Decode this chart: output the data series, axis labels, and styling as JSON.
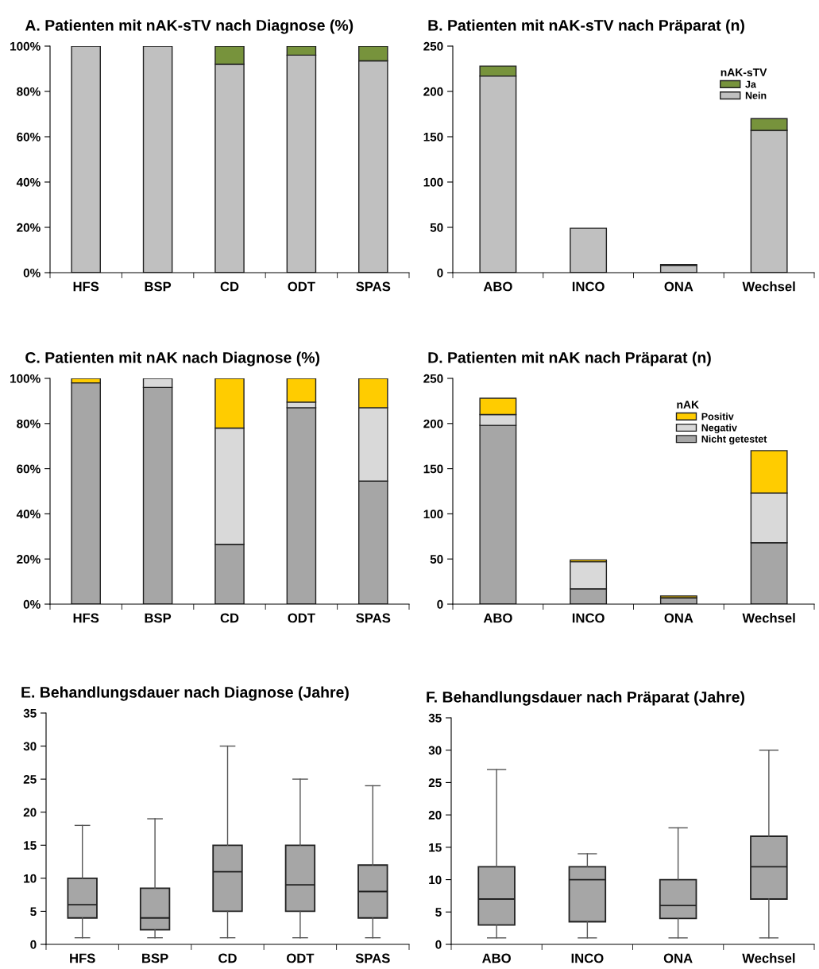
{
  "chart_data": [
    {
      "type": "bar",
      "title": "A. Patienten mit nAK-sTV nach Diagnose (%)",
      "categories": [
        "HFS",
        "BSP",
        "CD",
        "ODT",
        "SPAS"
      ],
      "stacked": true,
      "ylim": [
        0,
        100
      ],
      "yticks": [
        {
          "value": 0,
          "label": "0%"
        },
        {
          "value": 20,
          "label": "20%"
        },
        {
          "value": 40,
          "label": "40%"
        },
        {
          "value": 60,
          "label": "60%"
        },
        {
          "value": 80,
          "label": "80%"
        },
        {
          "value": 100,
          "label": "100%"
        }
      ],
      "grid": false,
      "legend": false,
      "series": [
        {
          "color": "#c0c0c0",
          "values": [
            100,
            100,
            92,
            96,
            93.5
          ]
        },
        {
          "color": "#77933c",
          "values": [
            0,
            0,
            8,
            4,
            6.5
          ]
        }
      ]
    },
    {
      "type": "bar",
      "title": "B. Patienten mit nAK-sTV nach Präparat (n)",
      "categories": [
        "ABO",
        "INCO",
        "ONA",
        "Wechsel"
      ],
      "stacked": true,
      "ylim": [
        0,
        250
      ],
      "yticks": [
        0,
        50,
        100,
        150,
        200,
        250
      ],
      "grid": false,
      "legend": "top right",
      "legend_title": "nAK-sTV",
      "series": [
        {
          "name": "Nein",
          "color": "#c0c0c0",
          "values": [
            217,
            49,
            8,
            157
          ]
        },
        {
          "name": "Ja",
          "color": "#77933c",
          "values": [
            11,
            0,
            1,
            13
          ]
        }
      ]
    },
    {
      "type": "bar",
      "title": "C. Patienten mit nAK nach Diagnose (%)",
      "categories": [
        "HFS",
        "BSP",
        "CD",
        "ODT",
        "SPAS"
      ],
      "stacked": true,
      "ylim": [
        0,
        100
      ],
      "yticks": [
        {
          "value": 0,
          "label": "0%"
        },
        {
          "value": 20,
          "label": "20%"
        },
        {
          "value": 40,
          "label": "40%"
        },
        {
          "value": 60,
          "label": "60%"
        },
        {
          "value": 80,
          "label": "80%"
        },
        {
          "value": 100,
          "label": "100%"
        }
      ],
      "grid": false,
      "legend": false,
      "series": [
        {
          "color": "#a6a6a6",
          "values": [
            98,
            96,
            26.5,
            87,
            54.5
          ]
        },
        {
          "color": "#d9d9d9",
          "values": [
            0,
            4,
            51.5,
            2.5,
            32.5
          ]
        },
        {
          "color": "#ffcc00",
          "values": [
            2,
            0,
            22,
            10.5,
            13
          ]
        }
      ]
    },
    {
      "type": "bar",
      "title": "D. Patienten mit nAK nach Präparat (n)",
      "categories": [
        "ABO",
        "INCO",
        "ONA",
        "Wechsel"
      ],
      "stacked": true,
      "ylim": [
        0,
        250
      ],
      "yticks": [
        0,
        50,
        100,
        150,
        200,
        250
      ],
      "grid": false,
      "legend": "top right",
      "legend_title": "nAK",
      "series": [
        {
          "name": "Nicht getestet",
          "color": "#a6a6a6",
          "values": [
            198,
            17,
            7,
            68
          ]
        },
        {
          "name": "Negativ",
          "color": "#d9d9d9",
          "values": [
            12,
            30,
            0,
            55
          ]
        },
        {
          "name": "Positiv",
          "color": "#ffcc00",
          "values": [
            18,
            2,
            2,
            47
          ]
        }
      ]
    },
    {
      "type": "box",
      "title": "E. Behandlungsdauer nach Diagnose (Jahre)",
      "categories": [
        "HFS",
        "BSP",
        "CD",
        "ODT",
        "SPAS"
      ],
      "ylim": [
        0,
        35
      ],
      "yticks": [
        0,
        5,
        10,
        15,
        20,
        25,
        30,
        35
      ],
      "grid": false,
      "color": "#a6a6a6",
      "boxes": [
        {
          "low": 1,
          "q1": 4,
          "median": 6,
          "q3": 10,
          "high": 18
        },
        {
          "low": 1,
          "q1": 2.2,
          "median": 4,
          "q3": 8.5,
          "high": 19
        },
        {
          "low": 1,
          "q1": 5,
          "median": 11,
          "q3": 15,
          "high": 30
        },
        {
          "low": 1,
          "q1": 5,
          "median": 9,
          "q3": 15,
          "high": 25
        },
        {
          "low": 1,
          "q1": 4,
          "median": 8,
          "q3": 12,
          "high": 24
        }
      ]
    },
    {
      "type": "box",
      "title": "F. Behandlungsdauer nach Präparat (Jahre)",
      "categories": [
        "ABO",
        "INCO",
        "ONA",
        "Wechsel"
      ],
      "ylim": [
        0,
        35
      ],
      "yticks": [
        0,
        5,
        10,
        15,
        20,
        25,
        30,
        35
      ],
      "grid": false,
      "color": "#a6a6a6",
      "boxes": [
        {
          "low": 1,
          "q1": 3,
          "median": 7,
          "q3": 12,
          "high": 27
        },
        {
          "low": 1,
          "q1": 3.5,
          "median": 10,
          "q3": 12,
          "high": 14
        },
        {
          "low": 1,
          "q1": 4,
          "median": 6,
          "q3": 10,
          "high": 18
        },
        {
          "low": 1,
          "q1": 7,
          "median": 12,
          "q3": 16.7,
          "high": 30
        }
      ]
    }
  ]
}
